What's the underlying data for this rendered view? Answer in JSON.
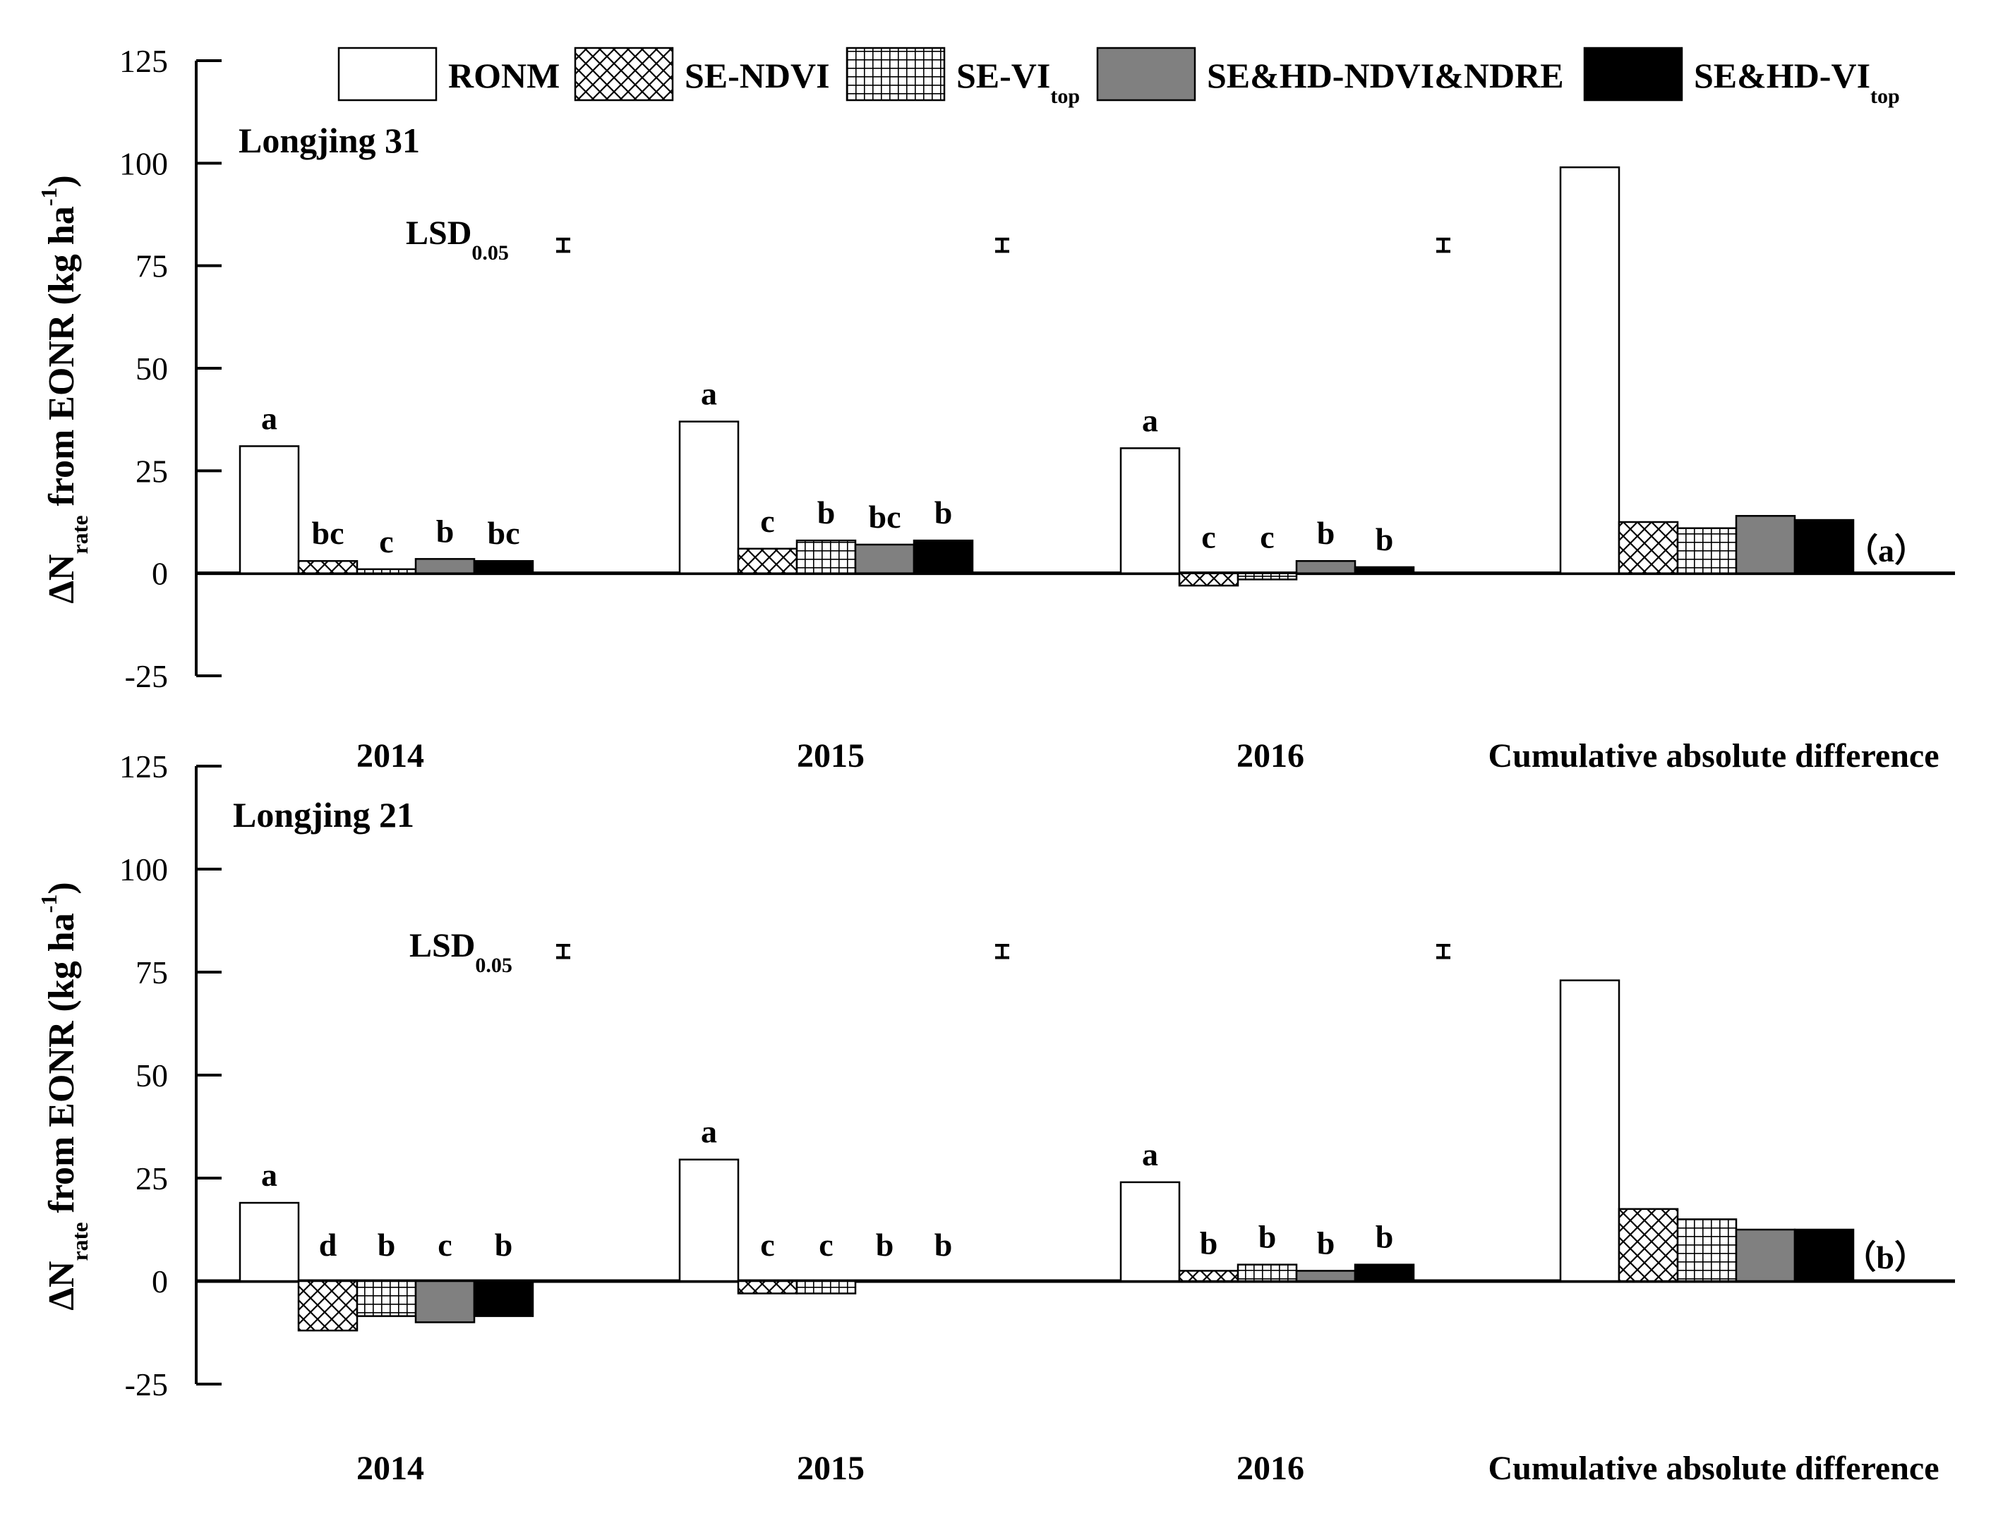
{
  "legend": [
    {
      "name": "RONM",
      "sub": "",
      "pattern": "white"
    },
    {
      "name": "SE-NDVI",
      "sub": "",
      "pattern": "cross"
    },
    {
      "name": "SE-VI",
      "sub": "top",
      "pattern": "grid"
    },
    {
      "name": "SE&HD-NDVI&NDRE",
      "sub": "",
      "pattern": "gray"
    },
    {
      "name": "SE&HD-VI",
      "sub": "top",
      "pattern": "black"
    }
  ],
  "colors": {
    "gray": "#808080",
    "black": "#000000",
    "white": "#ffffff"
  },
  "lsd_label": {
    "main": "LSD",
    "sub": "0.05"
  },
  "chart_data": [
    {
      "type": "bar",
      "title": "Longjing 31",
      "panel_label": "（a）",
      "ylabel": {
        "prefix": "ΔN",
        "sub": "rate",
        "main": " from EONR (kg ha",
        "sup": "-1",
        "end": ")"
      },
      "ylim": [
        -25,
        125
      ],
      "yticks": [
        -25,
        0,
        25,
        50,
        75,
        100,
        125
      ],
      "categories": [
        "2014",
        "2015",
        "2016",
        "Cumulative absolute difference"
      ],
      "series": [
        {
          "name": "RONM",
          "values": [
            31,
            37,
            30.5,
            99
          ]
        },
        {
          "name": "SE-NDVI",
          "values": [
            3,
            6,
            -3,
            12.5
          ]
        },
        {
          "name": "SE-VI_top",
          "values": [
            1,
            8,
            -1.5,
            11
          ]
        },
        {
          "name": "SE&HD-NDVI&NDRE",
          "values": [
            3.5,
            7,
            3,
            14
          ]
        },
        {
          "name": "SE&HD-VI_top",
          "values": [
            3,
            8,
            1.5,
            13
          ]
        }
      ],
      "letters": [
        [
          "a",
          "bc",
          "c",
          "b",
          "bc"
        ],
        [
          "a",
          "c",
          "b",
          "bc",
          "b"
        ],
        [
          "a",
          "c",
          "c",
          "b",
          "b"
        ]
      ],
      "lsd_value": 80,
      "lsd_half": 1.5
    },
    {
      "type": "bar",
      "title": "Longjing 21",
      "panel_label": "（b）",
      "ylabel": {
        "prefix": "ΔN",
        "sub": "rate",
        "main": " from EONR (kg ha",
        "sup": "-1",
        "end": ")"
      },
      "ylim": [
        -25,
        125
      ],
      "yticks": [
        -25,
        0,
        25,
        50,
        75,
        100,
        125
      ],
      "categories": [
        "2014",
        "2015",
        "2016",
        "Cumulative absolute difference"
      ],
      "series": [
        {
          "name": "RONM",
          "values": [
            19,
            29.5,
            24,
            73
          ]
        },
        {
          "name": "SE-NDVI",
          "values": [
            -12,
            -3,
            2.5,
            17.5
          ]
        },
        {
          "name": "SE-VI_top",
          "values": [
            -8.5,
            -3,
            4,
            15
          ]
        },
        {
          "name": "SE&HD-NDVI&NDRE",
          "values": [
            -10,
            0,
            2.5,
            12.5
          ]
        },
        {
          "name": "SE&HD-VI_top",
          "values": [
            -8.5,
            0,
            4,
            12.5
          ]
        }
      ],
      "letters": [
        [
          "a",
          "d",
          "b",
          "c",
          "b"
        ],
        [
          "a",
          "c",
          "c",
          "b",
          "b"
        ],
        [
          "a",
          "b",
          "b",
          "b",
          "b"
        ]
      ],
      "lsd_value": 80,
      "lsd_half": 1.5
    }
  ]
}
